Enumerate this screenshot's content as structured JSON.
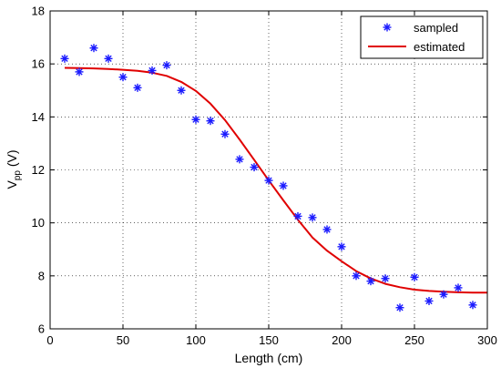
{
  "chart_data": {
    "type": "line",
    "xlabel": "Length (cm)",
    "ylabel": "V",
    "ylabel_subscript": "pp",
    "ylabel_unit": " (V)",
    "xlim": [
      0,
      300
    ],
    "ylim": [
      6,
      18
    ],
    "x_ticks": [
      0,
      50,
      100,
      150,
      200,
      250,
      300
    ],
    "y_ticks": [
      6,
      8,
      10,
      12,
      14,
      16,
      18
    ],
    "grid": true,
    "legend_position": "top-right",
    "series": [
      {
        "name": "sampled",
        "kind": "scatter",
        "marker": "asterisk",
        "color": "#1a1aff",
        "x": [
          10,
          20,
          30,
          40,
          50,
          60,
          70,
          80,
          90,
          100,
          110,
          120,
          130,
          140,
          150,
          160,
          170,
          180,
          190,
          200,
          210,
          220,
          230,
          240,
          250,
          260,
          270,
          280,
          290
        ],
        "y": [
          16.2,
          15.7,
          16.6,
          16.2,
          15.5,
          15.1,
          15.75,
          15.95,
          15.0,
          13.9,
          13.85,
          13.35,
          12.4,
          12.1,
          11.6,
          11.4,
          10.25,
          10.2,
          9.75,
          9.1,
          8.0,
          7.8,
          7.9,
          6.8,
          7.95,
          7.05,
          7.3,
          7.55,
          6.9
        ]
      },
      {
        "name": "estimated",
        "kind": "line",
        "color": "#e00000",
        "x": [
          10,
          20,
          30,
          40,
          50,
          60,
          70,
          80,
          90,
          100,
          110,
          120,
          130,
          140,
          150,
          160,
          170,
          180,
          190,
          200,
          210,
          220,
          230,
          240,
          250,
          260,
          270,
          280,
          290,
          300
        ],
        "y": [
          15.85,
          15.84,
          15.83,
          15.81,
          15.78,
          15.74,
          15.67,
          15.55,
          15.32,
          14.98,
          14.5,
          13.88,
          13.15,
          12.38,
          11.6,
          10.85,
          10.12,
          9.45,
          8.95,
          8.55,
          8.18,
          7.9,
          7.7,
          7.57,
          7.48,
          7.43,
          7.4,
          7.38,
          7.37,
          7.37
        ]
      }
    ]
  }
}
